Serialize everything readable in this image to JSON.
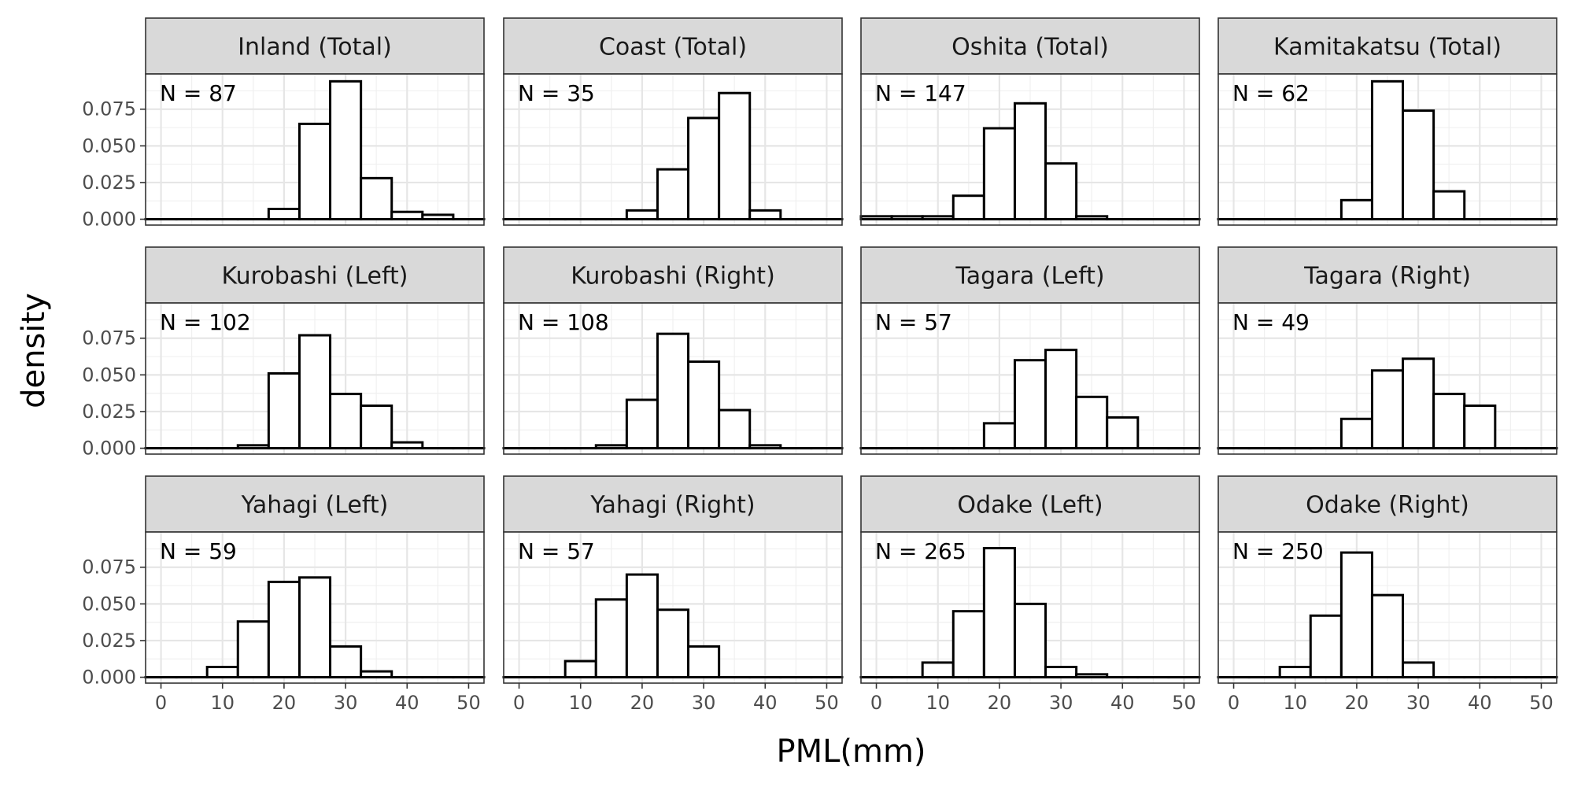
{
  "chart_data": {
    "type": "bar",
    "xlabel": "PML(mm)",
    "ylabel": "density",
    "xlim": [
      -2.5,
      52.5
    ],
    "ylim": [
      -0.004,
      0.099
    ],
    "x_ticks": [
      0,
      10,
      20,
      30,
      40,
      50
    ],
    "y_ticks": [
      0.0,
      0.025,
      0.05,
      0.075
    ],
    "y_tick_labels": [
      "0.000",
      "0.025",
      "0.050",
      "0.075"
    ],
    "bin_width": 5,
    "bin_centers": [
      0,
      5,
      10,
      15,
      20,
      25,
      30,
      35,
      40,
      45,
      50
    ],
    "grid": true,
    "facets": [
      {
        "title": "Inland (Total)",
        "n_label": "N = 87",
        "values": [
          0,
          0,
          0,
          0,
          0.007,
          0.065,
          0.094,
          0.028,
          0.005,
          0.003,
          0
        ]
      },
      {
        "title": "Coast (Total)",
        "n_label": "N = 35",
        "values": [
          0,
          0,
          0,
          0,
          0.006,
          0.034,
          0.069,
          0.086,
          0.006,
          0,
          0
        ]
      },
      {
        "title": "Oshita (Total)",
        "n_label": "N = 147",
        "values": [
          0.002,
          0.002,
          0.002,
          0.016,
          0.062,
          0.079,
          0.038,
          0.002,
          0,
          0,
          0
        ]
      },
      {
        "title": "Kamitakatsu (Total)",
        "n_label": "N = 62",
        "values": [
          0,
          0,
          0,
          0,
          0.013,
          0.094,
          0.074,
          0.019,
          0,
          0,
          0
        ]
      },
      {
        "title": "Kurobashi (Left)",
        "n_label": "N = 102",
        "values": [
          0,
          0,
          0,
          0.002,
          0.051,
          0.077,
          0.037,
          0.029,
          0.004,
          0,
          0
        ]
      },
      {
        "title": "Kurobashi (Right)",
        "n_label": "N = 108",
        "values": [
          0,
          0,
          0,
          0.002,
          0.033,
          0.078,
          0.059,
          0.026,
          0.002,
          0,
          0
        ]
      },
      {
        "title": "Tagara (Left)",
        "n_label": "N = 57",
        "values": [
          0,
          0,
          0,
          0,
          0.017,
          0.06,
          0.067,
          0.035,
          0.021,
          0,
          0
        ]
      },
      {
        "title": "Tagara (Right)",
        "n_label": "N = 49",
        "values": [
          0,
          0,
          0,
          0,
          0.02,
          0.053,
          0.061,
          0.037,
          0.029,
          0,
          0
        ]
      },
      {
        "title": "Yahagi (Left)",
        "n_label": "N = 59",
        "values": [
          0,
          0,
          0.007,
          0.038,
          0.065,
          0.068,
          0.021,
          0.004,
          0,
          0,
          0
        ]
      },
      {
        "title": "Yahagi (Right)",
        "n_label": "N = 57",
        "values": [
          0,
          0,
          0.011,
          0.053,
          0.07,
          0.046,
          0.021,
          0,
          0,
          0,
          0
        ]
      },
      {
        "title": "Odake (Left)",
        "n_label": "N = 265",
        "values": [
          0,
          0,
          0.01,
          0.045,
          0.088,
          0.05,
          0.007,
          0.002,
          0,
          0,
          0
        ]
      },
      {
        "title": "Odake (Right)",
        "n_label": "N = 250",
        "values": [
          0,
          0,
          0.007,
          0.042,
          0.085,
          0.056,
          0.01,
          0,
          0,
          0,
          0
        ]
      }
    ]
  }
}
